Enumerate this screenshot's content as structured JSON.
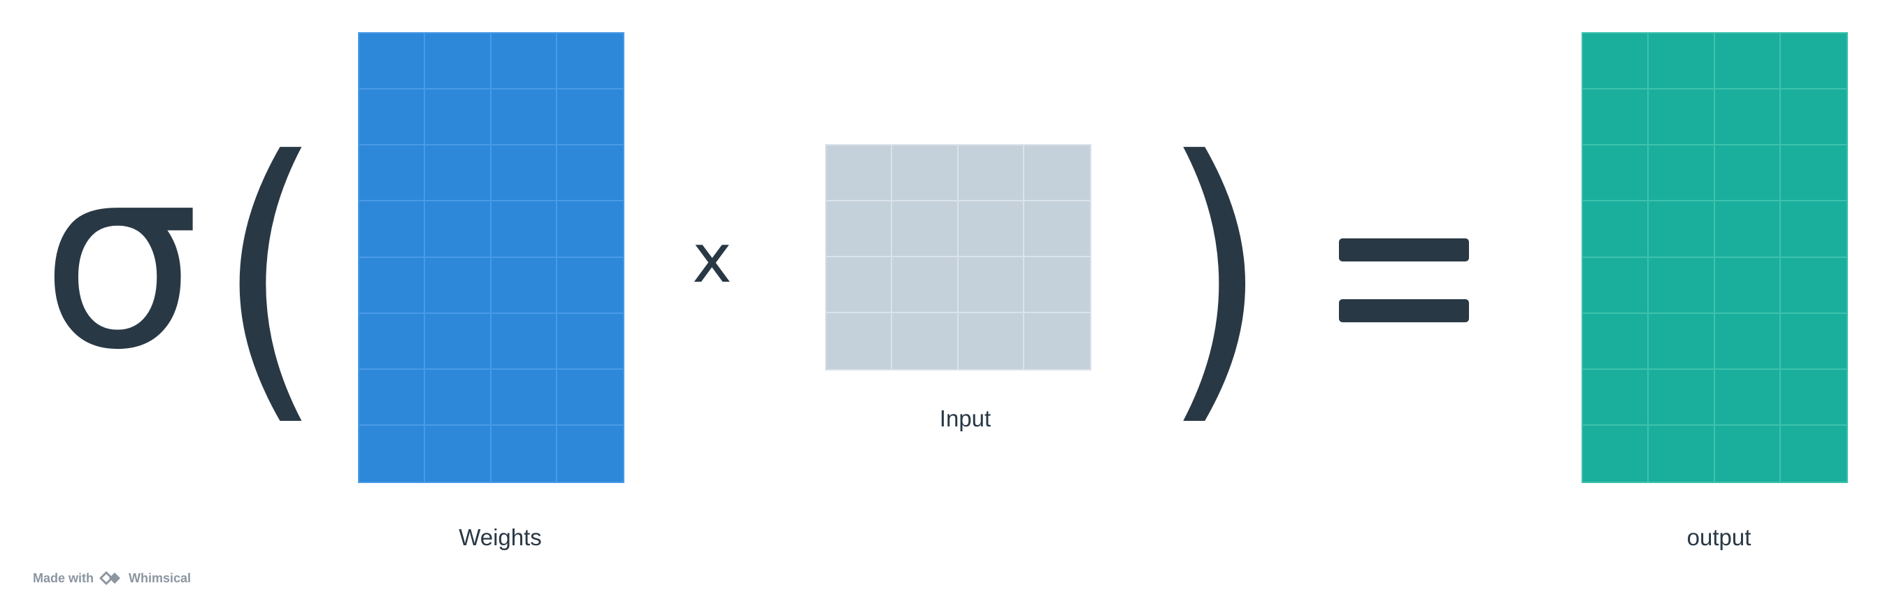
{
  "formula": {
    "activation_symbol": "σ(",
    "open_paren": "(",
    "close_paren": ")",
    "multiply_symbol": "x"
  },
  "matrices": {
    "weights": {
      "label": "Weights",
      "rows": 8,
      "cols": 4,
      "color": "#2d88da"
    },
    "input": {
      "label": "Input",
      "rows": 4,
      "cols": 4,
      "color": "#c4d1db"
    },
    "output": {
      "label": "output",
      "rows": 8,
      "cols": 4,
      "color": "#1aaf9c"
    }
  },
  "footer": {
    "made_with": "Made with",
    "brand": "Whimsical",
    "logo_icon": "whimsical-logo-icon"
  },
  "colors": {
    "ink": "#293845",
    "footer_text": "#8b96a1"
  }
}
